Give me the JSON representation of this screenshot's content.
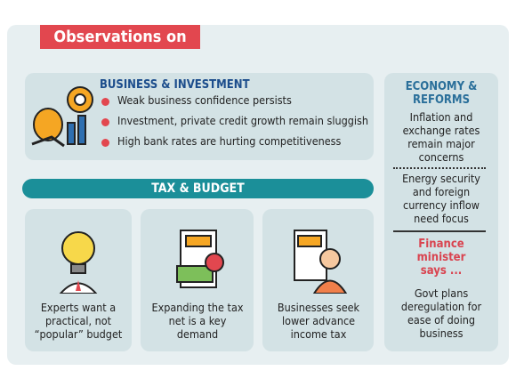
{
  "header": {
    "title": "Observations on"
  },
  "business": {
    "title": "BUSINESS & INVESTMENT",
    "points": [
      "Weak business confidence persists",
      "Investment, private credit growth remain sluggish",
      "High bank rates are hurting competitiveness"
    ]
  },
  "tax": {
    "title": "TAX & BUDGET",
    "cards": [
      "Experts want a practical, not “popular” budget",
      "Expanding the tax net is a key demand",
      "Businesses seek lower advance income tax"
    ]
  },
  "economy": {
    "title": "ECONOMY & REFORMS",
    "points": [
      "Inflation and exchange rates remain major concerns",
      "Energy security and foreign currency inflow need focus"
    ]
  },
  "minister": {
    "title": "Finance minister says ...",
    "text": "Govt plans deregulation for ease of doing business"
  }
}
